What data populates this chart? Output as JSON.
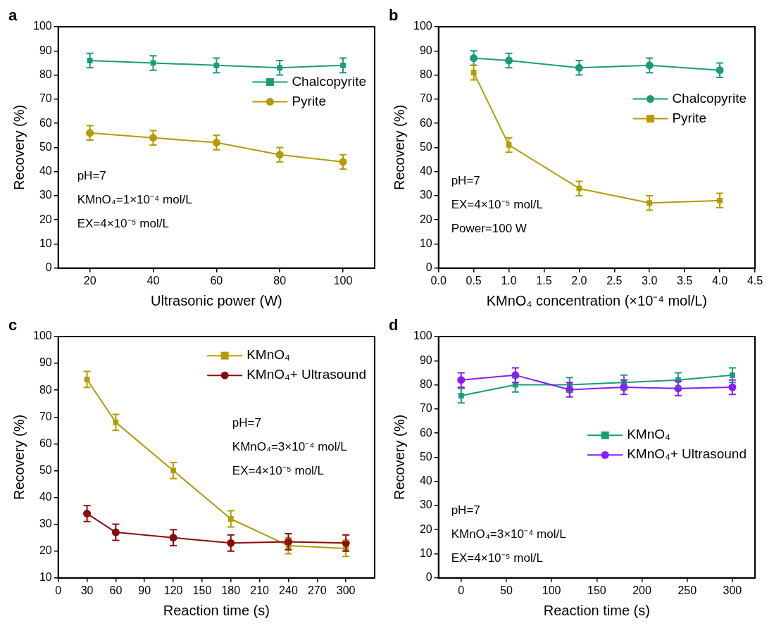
{
  "chart_data": [
    {
      "type": "line",
      "title": "a",
      "xlabel": "Ultrasonic power (W)",
      "ylabel": "Recovery (%)",
      "x": [
        20,
        40,
        60,
        80,
        100
      ],
      "xlim": [
        10,
        110
      ],
      "xticks": [
        20,
        40,
        60,
        80,
        100
      ],
      "ylim": [
        0,
        100
      ],
      "yticks": [
        0,
        10,
        20,
        30,
        40,
        50,
        60,
        70,
        80,
        90,
        100
      ],
      "grid": false,
      "legend": "right",
      "series": [
        {
          "name": "Chalcopyrite",
          "color": "#1a9c78",
          "marker": "square",
          "values": [
            86,
            85,
            84,
            83,
            84
          ],
          "errors": [
            3,
            3,
            3,
            3,
            3
          ]
        },
        {
          "name": "Pyrite",
          "color": "#b39c00",
          "marker": "circle",
          "values": [
            56,
            54,
            52,
            47,
            44
          ],
          "errors": [
            3,
            3,
            3,
            3,
            3
          ]
        }
      ],
      "annotations": [
        "pH=7",
        "KMnO₄=1×10⁻⁴ mol/L",
        "EX=4×10⁻⁵ mol/L"
      ]
    },
    {
      "type": "line",
      "title": "b",
      "xlabel": "KMnO₄ concentration (×10⁻⁴ mol/L)",
      "ylabel": "Recovery (%)",
      "x": [
        0.5,
        1,
        2,
        3,
        4
      ],
      "xlim": [
        0,
        4.5
      ],
      "xticks": [
        {
          "value": 0,
          "label": "0.0"
        },
        0.5,
        {
          "value": 1,
          "label": "1.0"
        },
        1.5,
        {
          "value": 2,
          "label": "2.0"
        },
        2.5,
        {
          "value": 3,
          "label": "3.0"
        },
        3.5,
        {
          "value": 4,
          "label": "4.0"
        },
        4.5
      ],
      "ylim": [
        0,
        100
      ],
      "yticks": [
        0,
        10,
        20,
        30,
        40,
        50,
        60,
        70,
        80,
        90,
        100
      ],
      "grid": false,
      "legend": "right",
      "series": [
        {
          "name": "Chalcopyrite",
          "color": "#1a9c78",
          "marker": "circle",
          "values": [
            87,
            86,
            83,
            84,
            82
          ],
          "errors": [
            3,
            3,
            3,
            3,
            3
          ]
        },
        {
          "name": "Pyrite",
          "color": "#b39c00",
          "marker": "square",
          "values": [
            81,
            51,
            33,
            27,
            28
          ],
          "errors": [
            3,
            3,
            3,
            3,
            3
          ]
        }
      ],
      "annotations": [
        "pH=7",
        "EX=4×10⁻⁵ mol/L",
        "Power=100 W"
      ]
    },
    {
      "type": "line",
      "title": "c",
      "xlabel": "Reaction time (s)",
      "ylabel": "Recovery (%)",
      "x": [
        30,
        60,
        120,
        180,
        240,
        300
      ],
      "xlim": [
        0,
        330
      ],
      "xticks": [
        0,
        30,
        60,
        90,
        120,
        150,
        180,
        210,
        240,
        270,
        300
      ],
      "ylim": [
        10,
        100
      ],
      "yticks": [
        10,
        20,
        30,
        40,
        50,
        60,
        70,
        80,
        90,
        100
      ],
      "grid": false,
      "legend": "top right",
      "series": [
        {
          "name": "KMnO₄",
          "color": "#b39c00",
          "marker": "square",
          "values": [
            84,
            68,
            50,
            32,
            22,
            21
          ],
          "errors": [
            3,
            3,
            3,
            3,
            3,
            3
          ]
        },
        {
          "name": "KMnO₄+ Ultrasound",
          "color": "#8b0a0a",
          "marker": "circle",
          "values": [
            34,
            27,
            25,
            23,
            23.5,
            23
          ],
          "errors": [
            3,
            3,
            3,
            3,
            3,
            3
          ]
        }
      ],
      "annotations": [
        "pH=7",
        "KMnO₄=3×10⁻⁴ mol/L",
        "EX=4×10⁻⁵ mol/L"
      ]
    },
    {
      "type": "line",
      "title": "d",
      "xlabel": "Reaction time (s)",
      "ylabel": "Recovery (%)",
      "x": [
        0,
        60,
        120,
        180,
        240,
        300
      ],
      "xlim": [
        -25,
        325
      ],
      "xticks": [
        0,
        50,
        100,
        150,
        200,
        250,
        300
      ],
      "ylim": [
        0,
        100
      ],
      "yticks": [
        0,
        10,
        20,
        30,
        40,
        50,
        60,
        70,
        80,
        90,
        100
      ],
      "grid": false,
      "legend": "right",
      "series": [
        {
          "name": "KMnO₄",
          "color": "#1a9c78",
          "marker": "square",
          "values": [
            75.5,
            80,
            80,
            81,
            82,
            84
          ],
          "errors": [
            3,
            3,
            3,
            3,
            3,
            3
          ]
        },
        {
          "name": "KMnO₄+ Ultrasound",
          "color": "#8c1aff",
          "marker": "circle",
          "values": [
            82,
            84,
            78,
            79,
            78.5,
            79
          ],
          "errors": [
            3,
            3,
            3,
            3,
            3,
            3
          ]
        }
      ],
      "annotations": [
        "pH=7",
        "KMnO₄=3×10⁻⁴ mol/L",
        "EX=4×10⁻⁵ mol/L"
      ]
    }
  ]
}
